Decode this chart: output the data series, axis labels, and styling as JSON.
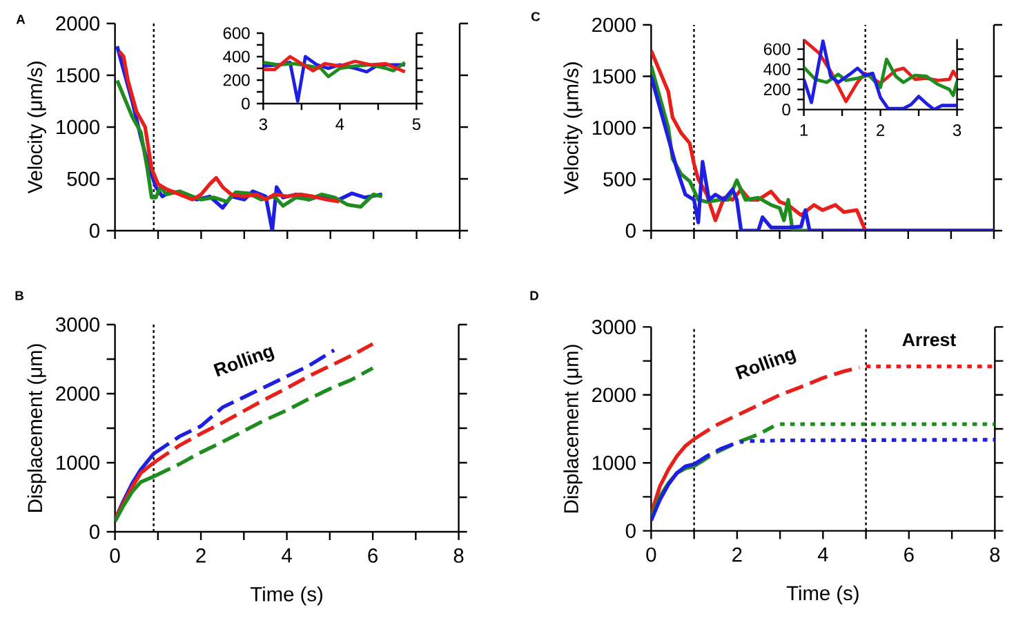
{
  "chart_data": [
    {
      "type": "line",
      "ylabel": "Velocity (μm/s)",
      "xlim": [
        0,
        8
      ],
      "ylim": [
        0,
        2000
      ],
      "tick_labels": "y",
      "xticks": [
        0,
        1,
        2,
        3,
        4,
        5,
        6,
        7,
        8
      ],
      "yticks": [
        0,
        500,
        1000,
        1500,
        2000
      ],
      "annotations": [
        "A"
      ],
      "ref_lines": [
        {
          "axis": "x",
          "value": 0.9,
          "line_style": "dotted"
        }
      ],
      "series": [
        {
          "color": "#1f1fe0",
          "line_style": "solid",
          "x": [
            0.05,
            0.2,
            0.4,
            0.6,
            0.8,
            0.95,
            1.1,
            1.3,
            1.6,
            1.9,
            2.2,
            2.5,
            2.7,
            3.0,
            3.2,
            3.5,
            3.65,
            3.75,
            3.9,
            4.2,
            4.5,
            4.8,
            5.2,
            5.5,
            5.8,
            6.2
          ],
          "values": [
            1780,
            1550,
            1250,
            900,
            600,
            420,
            330,
            380,
            350,
            300,
            330,
            220,
            330,
            300,
            380,
            330,
            0,
            420,
            320,
            350,
            300,
            340,
            300,
            360,
            320,
            350
          ]
        },
        {
          "color": "#1e8c1e",
          "line_style": "solid",
          "x": [
            0.05,
            0.2,
            0.4,
            0.6,
            0.75,
            0.85,
            0.95,
            1.05,
            1.2,
            1.5,
            1.8,
            2.0,
            2.3,
            2.6,
            2.8,
            3.1,
            3.4,
            3.7,
            3.9,
            4.2,
            4.5,
            4.8,
            5.1,
            5.4,
            5.7,
            6.0,
            6.2
          ],
          "values": [
            1450,
            1300,
            1100,
            950,
            600,
            320,
            320,
            420,
            350,
            380,
            330,
            300,
            320,
            280,
            370,
            360,
            300,
            330,
            240,
            320,
            300,
            350,
            320,
            250,
            230,
            350,
            330
          ]
        },
        {
          "color": "#e8201c",
          "line_style": "solid",
          "x": [
            0.1,
            0.2,
            0.3,
            0.5,
            0.7,
            0.85,
            1.0,
            1.2,
            1.5,
            1.8,
            2.0,
            2.2,
            2.35,
            2.5,
            2.7,
            3.0,
            3.3,
            3.5,
            3.7,
            4.0,
            4.3,
            4.6,
            4.9,
            5.2
          ],
          "values": [
            1730,
            1680,
            1450,
            1150,
            1000,
            600,
            450,
            400,
            350,
            300,
            350,
            450,
            510,
            420,
            350,
            330,
            350,
            300,
            350,
            330,
            350,
            330,
            300,
            280
          ]
        }
      ]
    },
    {
      "type": "line",
      "xlim": [
        3,
        5
      ],
      "ylim": [
        0,
        600
      ],
      "xticks": [
        3,
        {
          "value": 3.5,
          "label": null
        },
        4,
        {
          "value": 4.5,
          "label": null
        },
        5
      ],
      "yticks": [
        0,
        {
          "value": 100,
          "label": null
        },
        200,
        {
          "value": 300,
          "label": null
        },
        400,
        {
          "value": 500,
          "label": null
        },
        600
      ],
      "series": [
        {
          "color": "#1f1fe0",
          "line_style": "solid",
          "x": [
            3.0,
            3.2,
            3.35,
            3.45,
            3.55,
            3.7,
            3.85,
            4.0,
            4.2,
            4.35,
            4.5,
            4.7,
            4.85
          ],
          "values": [
            320,
            330,
            350,
            20,
            400,
            330,
            300,
            330,
            300,
            270,
            330,
            330,
            330
          ]
        },
        {
          "color": "#1e8c1e",
          "line_style": "solid",
          "x": [
            3.0,
            3.2,
            3.4,
            3.6,
            3.75,
            3.85,
            4.0,
            4.2,
            4.4,
            4.6,
            4.7,
            4.85
          ],
          "values": [
            350,
            330,
            340,
            320,
            300,
            230,
            300,
            320,
            330,
            300,
            280,
            350
          ]
        },
        {
          "color": "#e8201c",
          "line_style": "solid",
          "x": [
            3.0,
            3.15,
            3.35,
            3.5,
            3.65,
            3.8,
            4.0,
            4.2,
            4.4,
            4.6,
            4.85
          ],
          "values": [
            290,
            290,
            400,
            340,
            280,
            340,
            320,
            360,
            330,
            340,
            270
          ]
        }
      ]
    },
    {
      "type": "line",
      "ylabel": "Velocity (μm/s)",
      "xlim": [
        0,
        8
      ],
      "ylim": [
        0,
        2000
      ],
      "tick_labels": "y",
      "xticks": [
        0,
        1,
        2,
        3,
        4,
        5,
        6,
        7,
        8
      ],
      "yticks": [
        0,
        500,
        1000,
        1500,
        2000
      ],
      "annotations": [
        "C"
      ],
      "ref_lines": [
        {
          "axis": "x",
          "value": 1,
          "line_style": "dotted"
        },
        {
          "axis": "x",
          "value": 5,
          "line_style": "dotted"
        }
      ],
      "series": [
        {
          "color": "#e8201c",
          "line_style": "solid",
          "x": [
            0,
            0.2,
            0.4,
            0.5,
            0.7,
            0.9,
            1.0,
            1.1,
            1.3,
            1.5,
            1.7,
            1.9,
            2.1,
            2.3,
            2.5,
            2.8,
            3.0,
            3.2,
            3.5,
            3.8,
            4.0,
            4.3,
            4.5,
            4.8,
            5.0,
            8.0
          ],
          "values": [
            1750,
            1550,
            1350,
            1100,
            950,
            850,
            650,
            500,
            350,
            100,
            320,
            300,
            400,
            300,
            300,
            380,
            280,
            250,
            150,
            250,
            200,
            250,
            180,
            200,
            0,
            0
          ]
        },
        {
          "color": "#1e8c1e",
          "line_style": "solid",
          "x": [
            0,
            0.2,
            0.4,
            0.5,
            0.7,
            0.9,
            1.1,
            1.3,
            1.6,
            1.8,
            2.0,
            2.2,
            2.5,
            2.8,
            3.0,
            3.1,
            3.2,
            3.3,
            8.0
          ],
          "values": [
            1600,
            1300,
            1000,
            700,
            550,
            480,
            300,
            280,
            300,
            300,
            490,
            300,
            320,
            250,
            220,
            100,
            300,
            0,
            0
          ]
        },
        {
          "color": "#1f1fe0",
          "line_style": "solid",
          "x": [
            0,
            0.2,
            0.4,
            0.6,
            0.8,
            1.0,
            1.1,
            1.2,
            1.35,
            1.5,
            1.7,
            1.9,
            2.0,
            2.1,
            2.5,
            2.6,
            2.8,
            3.2,
            3.5,
            3.6,
            3.7,
            8.0
          ],
          "values": [
            1500,
            1200,
            900,
            600,
            350,
            300,
            80,
            670,
            300,
            350,
            300,
            400,
            300,
            0,
            0,
            130,
            30,
            30,
            40,
            200,
            0,
            0
          ]
        }
      ]
    },
    {
      "type": "line",
      "xlim": [
        1,
        3
      ],
      "ylim": [
        0,
        700
      ],
      "xticks": [
        1,
        {
          "value": 1.5,
          "label": null
        },
        2,
        {
          "value": 2.5,
          "label": null
        },
        3
      ],
      "yticks": [
        0,
        {
          "value": 100,
          "label": null
        },
        200,
        {
          "value": 300,
          "label": null
        },
        400,
        {
          "value": 500,
          "label": null
        },
        600
      ],
      "series": [
        {
          "color": "#e8201c",
          "line_style": "solid",
          "x": [
            1.0,
            1.2,
            1.35,
            1.55,
            1.7,
            1.8,
            2.0,
            2.2,
            2.3,
            2.45,
            2.6,
            2.75,
            2.9,
            2.95,
            3.0
          ],
          "values": [
            690,
            560,
            380,
            80,
            270,
            360,
            260,
            390,
            410,
            300,
            310,
            290,
            300,
            380,
            320
          ]
        },
        {
          "color": "#1e8c1e",
          "line_style": "solid",
          "x": [
            1.0,
            1.15,
            1.3,
            1.45,
            1.55,
            1.7,
            1.85,
            2.0,
            2.08,
            2.2,
            2.3,
            2.45,
            2.6,
            2.75,
            2.9,
            2.95,
            3.0
          ],
          "values": [
            420,
            300,
            270,
            350,
            290,
            310,
            340,
            220,
            500,
            330,
            270,
            340,
            330,
            250,
            200,
            140,
            280
          ]
        },
        {
          "color": "#1f1fe0",
          "line_style": "solid",
          "x": [
            1.0,
            1.1,
            1.25,
            1.35,
            1.45,
            1.6,
            1.7,
            1.8,
            1.9,
            2.0,
            2.1,
            2.3,
            2.4,
            2.5,
            2.6,
            2.7,
            2.8,
            3.0
          ],
          "values": [
            300,
            70,
            680,
            330,
            270,
            350,
            410,
            340,
            360,
            120,
            10,
            10,
            50,
            130,
            60,
            0,
            40,
            40
          ]
        }
      ]
    },
    {
      "type": "line",
      "xlabel": "Time (s)",
      "ylabel": "Displacement (μm)",
      "xlim": [
        0,
        8
      ],
      "ylim": [
        0,
        3000
      ],
      "xticks": [
        0,
        {
          "value": 1,
          "label": null
        },
        2,
        {
          "value": 3,
          "label": null
        },
        4,
        {
          "value": 5,
          "label": null
        },
        6,
        {
          "value": 7,
          "label": null
        },
        8
      ],
      "yticks": [
        0,
        {
          "value": 500,
          "label": null
        },
        1000,
        {
          "value": 1500,
          "label": null
        },
        2000,
        {
          "value": 2500,
          "label": null
        },
        3000
      ],
      "annotations": [
        "B",
        "Rolling"
      ],
      "ref_lines": [
        {
          "axis": "x",
          "value": 0.9,
          "line_style": "dotted"
        }
      ],
      "series": [
        {
          "color": "#1f1fe0",
          "line_style": "solid",
          "x": [
            0,
            0.2,
            0.4,
            0.6,
            0.9
          ],
          "values": [
            180,
            450,
            700,
            900,
            1130
          ]
        },
        {
          "color": "#1f1fe0",
          "line_style": "dashed",
          "x": [
            0.9,
            1.5,
            2.0,
            2.5,
            3.0,
            3.5,
            4.0,
            4.5,
            5.1
          ],
          "values": [
            1130,
            1380,
            1530,
            1800,
            1950,
            2100,
            2250,
            2400,
            2630
          ]
        },
        {
          "color": "#e8201c",
          "line_style": "solid",
          "x": [
            0,
            0.2,
            0.4,
            0.6,
            0.9
          ],
          "values": [
            180,
            420,
            650,
            850,
            1000
          ]
        },
        {
          "color": "#e8201c",
          "line_style": "dashed",
          "x": [
            0.9,
            1.5,
            2.0,
            2.5,
            3.0,
            3.5,
            4.0,
            4.5,
            5.0,
            5.5,
            6.0
          ],
          "values": [
            1000,
            1250,
            1420,
            1580,
            1750,
            1920,
            2080,
            2250,
            2400,
            2550,
            2720
          ]
        },
        {
          "color": "#1e8c1e",
          "line_style": "solid",
          "x": [
            0,
            0.2,
            0.4,
            0.6,
            0.9
          ],
          "values": [
            150,
            380,
            580,
            720,
            800
          ]
        },
        {
          "color": "#1e8c1e",
          "line_style": "dashed",
          "x": [
            0.9,
            1.5,
            2.0,
            2.5,
            3.0,
            3.5,
            4.0,
            4.5,
            5.0,
            5.5,
            6.0
          ],
          "values": [
            800,
            980,
            1150,
            1300,
            1460,
            1620,
            1760,
            1920,
            2070,
            2200,
            2370
          ]
        }
      ]
    },
    {
      "type": "line",
      "xlabel": "Time (s)",
      "ylabel": "Displacement (μm)",
      "xlim": [
        0,
        8
      ],
      "ylim": [
        0,
        3000
      ],
      "xticks": [
        0,
        {
          "value": 1,
          "label": null
        },
        2,
        {
          "value": 3,
          "label": null
        },
        4,
        {
          "value": 5,
          "label": null
        },
        6,
        {
          "value": 7,
          "label": null
        },
        8
      ],
      "yticks": [
        0,
        {
          "value": 500,
          "label": null
        },
        1000,
        {
          "value": 1500,
          "label": null
        },
        2000,
        {
          "value": 2500,
          "label": null
        },
        3000
      ],
      "annotations": [
        "D",
        "Rolling",
        "Arrest"
      ],
      "ref_lines": [
        {
          "axis": "x",
          "value": 1,
          "line_style": "dotted"
        },
        {
          "axis": "x",
          "value": 5,
          "line_style": "dotted"
        }
      ],
      "series": [
        {
          "color": "#e8201c",
          "line_style": "solid",
          "x": [
            0,
            0.2,
            0.4,
            0.6,
            0.8,
            1.0
          ],
          "values": [
            250,
            650,
            900,
            1100,
            1250,
            1350
          ]
        },
        {
          "color": "#e8201c",
          "line_style": "dashed",
          "x": [
            1.0,
            1.5,
            2.0,
            2.5,
            3.0,
            3.5,
            4.0,
            4.5,
            4.85
          ],
          "values": [
            1350,
            1550,
            1700,
            1850,
            2000,
            2120,
            2250,
            2350,
            2400
          ]
        },
        {
          "color": "#e8201c",
          "line_style": "dotted",
          "x": [
            5.0,
            8.0
          ],
          "values": [
            2420,
            2420
          ]
        },
        {
          "color": "#1e8c1e",
          "line_style": "solid",
          "x": [
            0,
            0.2,
            0.4,
            0.6,
            0.8,
            1.0
          ],
          "values": [
            200,
            500,
            700,
            850,
            920,
            950
          ]
        },
        {
          "color": "#1e8c1e",
          "line_style": "dashed",
          "x": [
            1.0,
            1.5,
            2.0,
            2.5,
            2.85
          ],
          "values": [
            950,
            1150,
            1300,
            1420,
            1540
          ]
        },
        {
          "color": "#1e8c1e",
          "line_style": "dotted",
          "x": [
            3.0,
            8.0
          ],
          "values": [
            1570,
            1570
          ]
        },
        {
          "color": "#1f1fe0",
          "line_style": "solid",
          "x": [
            0,
            0.2,
            0.4,
            0.6,
            0.8,
            1.0
          ],
          "values": [
            150,
            450,
            680,
            850,
            950,
            980
          ]
        },
        {
          "color": "#1f1fe0",
          "line_style": "dashed",
          "x": [
            1.0,
            1.3,
            1.6,
            2.0,
            2.15
          ],
          "values": [
            980,
            1100,
            1200,
            1300,
            1310
          ]
        },
        {
          "color": "#1f1fe0",
          "line_style": "dotted",
          "x": [
            2.3,
            3.0,
            8.0
          ],
          "values": [
            1320,
            1330,
            1340
          ]
        }
      ]
    }
  ]
}
